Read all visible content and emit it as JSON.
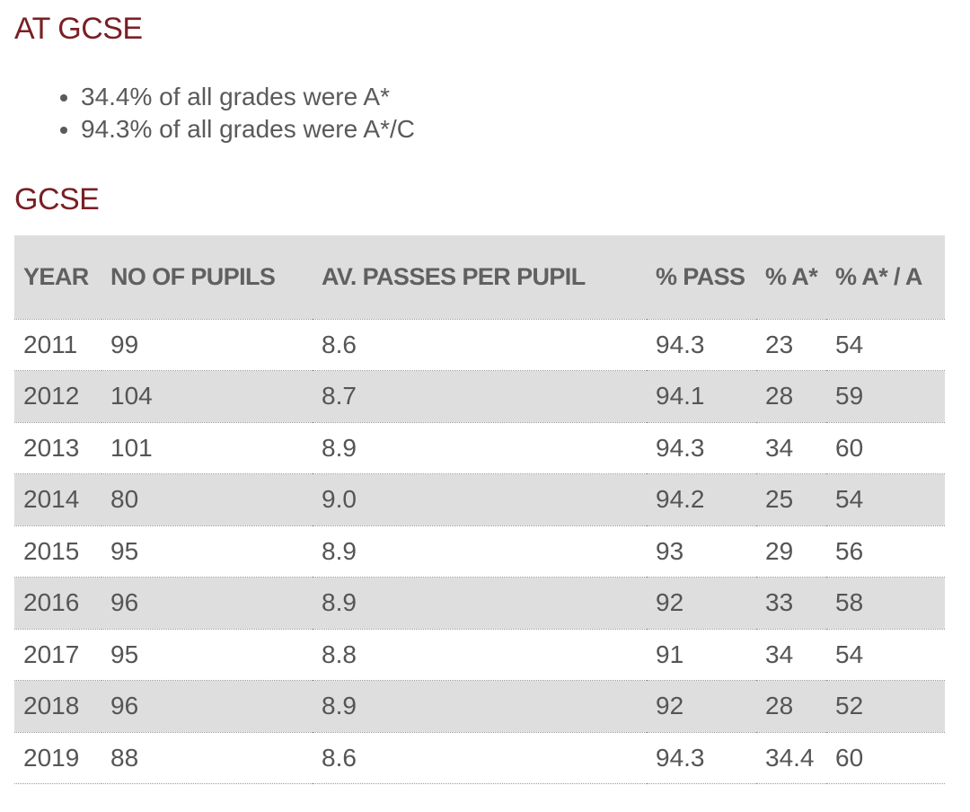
{
  "at_gcse": {
    "heading": "AT GCSE",
    "bullets": [
      "34.4% of all grades were A*",
      "94.3% of all grades were A*/C"
    ]
  },
  "gcse": {
    "heading": "GCSE",
    "columns": [
      "YEAR",
      "NO OF PUPILS",
      "AV. PASSES PER PUPIL",
      "% PASS",
      "% A*",
      "% A* / A"
    ],
    "rows": [
      [
        "2011",
        "99",
        "8.6",
        "94.3",
        "23",
        "54"
      ],
      [
        "2012",
        "104",
        "8.7",
        "94.1",
        "28",
        "59"
      ],
      [
        "2013",
        "101",
        "8.9",
        "94.3",
        "34",
        "60"
      ],
      [
        "2014",
        "80",
        "9.0",
        "94.2",
        "25",
        "54"
      ],
      [
        "2015",
        "95",
        "8.9",
        "93",
        "29",
        "56"
      ],
      [
        "2016",
        "96",
        "8.9",
        "92",
        "33",
        "58"
      ],
      [
        "2017",
        "95",
        "8.8",
        "91",
        "34",
        "54"
      ],
      [
        "2018",
        "96",
        "8.9",
        "92",
        "28",
        "52"
      ],
      [
        "2019",
        "88",
        "8.6",
        "94.3",
        "34.4",
        "60"
      ]
    ]
  },
  "colors": {
    "heading": "#7a1f25",
    "row_shade": "#dedede",
    "text": "#555555"
  }
}
